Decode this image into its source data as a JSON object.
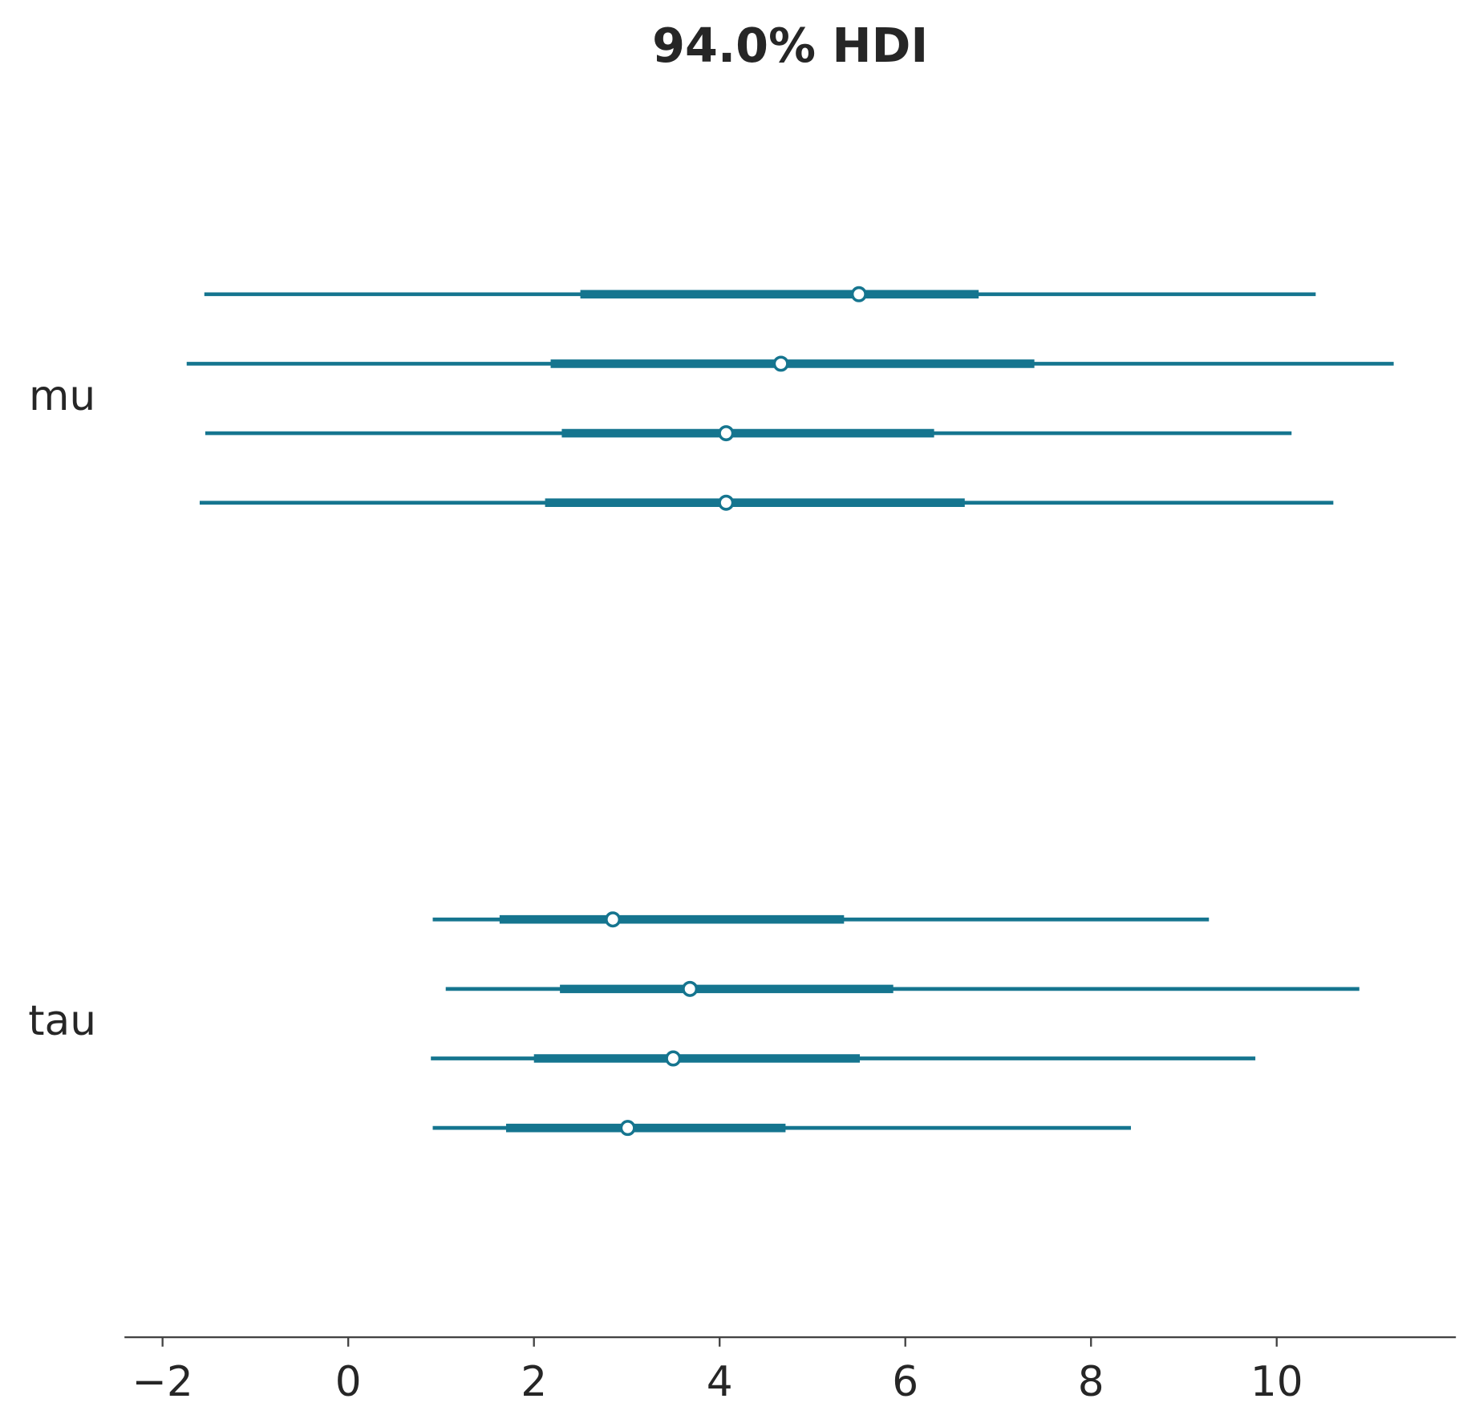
{
  "chart_data": {
    "type": "forest",
    "title": "94.0% HDI",
    "xlim": [
      -2.41,
      11.93
    ],
    "xticks": [
      {
        "value": -2,
        "label": "−2"
      },
      0,
      2,
      4,
      6,
      8,
      10
    ],
    "series": [
      {
        "name": "mu",
        "color": "#15758f",
        "chains": [
          {
            "hdi": [
              -1.55,
              10.42
            ],
            "iqr": [
              2.5,
              6.79
            ],
            "median": 5.5
          },
          {
            "hdi": [
              -1.74,
              11.26
            ],
            "iqr": [
              2.18,
              7.39
            ],
            "median": 4.66
          },
          {
            "hdi": [
              -1.54,
              10.16
            ],
            "iqr": [
              2.3,
              6.31
            ],
            "median": 4.07
          },
          {
            "hdi": [
              -1.6,
              10.61
            ],
            "iqr": [
              2.12,
              6.64
            ],
            "median": 4.07
          }
        ]
      },
      {
        "name": "tau",
        "color": "#15758f",
        "chains": [
          {
            "hdi": [
              0.91,
              9.27
            ],
            "iqr": [
              1.63,
              5.34
            ],
            "median": 2.85
          },
          {
            "hdi": [
              1.05,
              10.89
            ],
            "iqr": [
              2.28,
              5.87
            ],
            "median": 3.68
          },
          {
            "hdi": [
              0.89,
              9.77
            ],
            "iqr": [
              2.0,
              5.51
            ],
            "median": 3.5
          },
          {
            "hdi": [
              0.91,
              8.43
            ],
            "iqr": [
              1.7,
              4.71
            ],
            "median": 3.01
          }
        ]
      }
    ]
  }
}
